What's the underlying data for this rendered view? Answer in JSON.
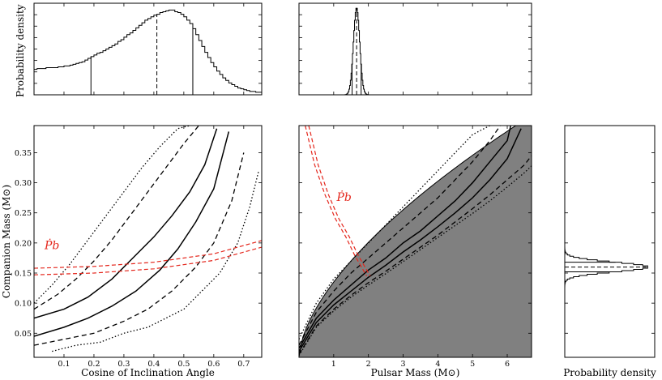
{
  "chart_data": [
    {
      "id": "top-left-hist",
      "type": "histogram",
      "ylabel": "Probability density",
      "xlim": [
        0.0,
        0.76
      ],
      "lines": {
        "solid": [
          0.19,
          0.53
        ],
        "dashed": [
          0.41
        ]
      },
      "bin_width": 0.01,
      "values": [
        0.3,
        0.31,
        0.31,
        0.31,
        0.32,
        0.32,
        0.32,
        0.32,
        0.33,
        0.33,
        0.34,
        0.34,
        0.35,
        0.36,
        0.37,
        0.38,
        0.39,
        0.41,
        0.43,
        0.45,
        0.47,
        0.49,
        0.5,
        0.52,
        0.54,
        0.56,
        0.58,
        0.6,
        0.63,
        0.65,
        0.68,
        0.71,
        0.73,
        0.76,
        0.79,
        0.82,
        0.85,
        0.88,
        0.9,
        0.92,
        0.94,
        0.95,
        0.97,
        0.98,
        0.99,
        1.0,
        1.0,
        0.98,
        0.97,
        0.95,
        0.92,
        0.88,
        0.84,
        0.78,
        0.71,
        0.64,
        0.57,
        0.5,
        0.44,
        0.38,
        0.33,
        0.28,
        0.24,
        0.2,
        0.17,
        0.14,
        0.12,
        0.1,
        0.08,
        0.07,
        0.06,
        0.05,
        0.04,
        0.04,
        0.03,
        0.03
      ]
    },
    {
      "id": "top-middle-hist",
      "type": "histogram",
      "xlim": [
        0.0,
        6.7
      ],
      "center": 1.66,
      "sigma": 0.09,
      "lines": {
        "solid": [
          1.53,
          1.79
        ],
        "dashed": [
          1.66
        ]
      }
    },
    {
      "id": "left-main",
      "type": "line",
      "xlabel": "Cosine of Inclination Angle",
      "ylabel": "Companion Mass (M⊙)",
      "xlim": [
        0.0,
        0.76
      ],
      "ylim": [
        0.01,
        0.395
      ],
      "xticks": [
        "0.1",
        "0.2",
        "0.3",
        "0.4",
        "0.5",
        "0.6",
        "0.7"
      ],
      "yticks": [
        "0.05",
        "0.10",
        "0.15",
        "0.20",
        "0.25",
        "0.30",
        "0.35"
      ],
      "annotation": "Ṗb",
      "contours": [
        {
          "style": "dotted",
          "x": [
            0.0,
            0.06,
            0.12,
            0.18,
            0.24,
            0.3,
            0.36,
            0.42,
            0.48,
            0.52
          ],
          "y": [
            0.1,
            0.13,
            0.165,
            0.205,
            0.245,
            0.285,
            0.325,
            0.36,
            0.39,
            0.395
          ]
        },
        {
          "style": "dashed",
          "x": [
            0.0,
            0.08,
            0.14,
            0.2,
            0.26,
            0.32,
            0.38,
            0.44,
            0.5,
            0.55
          ],
          "y": [
            0.09,
            0.115,
            0.14,
            0.17,
            0.205,
            0.245,
            0.285,
            0.325,
            0.365,
            0.395
          ]
        },
        {
          "style": "solid",
          "x": [
            0.0,
            0.1,
            0.18,
            0.26,
            0.32,
            0.4,
            0.46,
            0.52,
            0.57,
            0.61
          ],
          "y": [
            0.075,
            0.09,
            0.11,
            0.14,
            0.17,
            0.21,
            0.245,
            0.285,
            0.33,
            0.39
          ]
        },
        {
          "style": "solid",
          "x": [
            0.0,
            0.1,
            0.18,
            0.26,
            0.34,
            0.42,
            0.48,
            0.54,
            0.6,
            0.65
          ],
          "y": [
            0.045,
            0.06,
            0.075,
            0.095,
            0.12,
            0.155,
            0.19,
            0.235,
            0.29,
            0.385
          ]
        },
        {
          "style": "dashed",
          "x": [
            0.0,
            0.1,
            0.2,
            0.3,
            0.38,
            0.46,
            0.54,
            0.6,
            0.66,
            0.7
          ],
          "y": [
            0.03,
            0.04,
            0.05,
            0.07,
            0.09,
            0.12,
            0.16,
            0.2,
            0.27,
            0.35
          ]
        },
        {
          "style": "dotted",
          "x": [
            0.06,
            0.14,
            0.22,
            0.3,
            0.38,
            0.44,
            0.5,
            0.56,
            0.62,
            0.68,
            0.72,
            0.75
          ],
          "y": [
            0.02,
            0.03,
            0.035,
            0.05,
            0.06,
            0.075,
            0.09,
            0.12,
            0.15,
            0.2,
            0.26,
            0.32
          ]
        }
      ],
      "red_lines": [
        {
          "x": [
            0.0,
            0.2,
            0.4,
            0.6,
            0.76
          ],
          "y": [
            0.158,
            0.161,
            0.168,
            0.182,
            0.204
          ]
        },
        {
          "x": [
            0.0,
            0.2,
            0.4,
            0.6,
            0.76
          ],
          "y": [
            0.147,
            0.15,
            0.157,
            0.171,
            0.193
          ]
        }
      ]
    },
    {
      "id": "middle-main",
      "type": "line",
      "xlabel": "Pulsar Mass (M⊙)",
      "xlim": [
        0.0,
        6.7
      ],
      "ylim": [
        0.01,
        0.395
      ],
      "xticks": [
        "1",
        "2",
        "3",
        "4",
        "5",
        "6"
      ],
      "annotation": "Ṗb",
      "shaded_region": "excluded",
      "contours": [
        {
          "style": "dotted",
          "x": [
            0.0,
            0.5,
            1.0,
            1.5,
            2.0,
            2.5,
            3.0,
            3.5,
            4.0,
            4.5,
            5.0,
            5.5
          ],
          "y": [
            0.04,
            0.1,
            0.14,
            0.17,
            0.2,
            0.23,
            0.26,
            0.29,
            0.32,
            0.35,
            0.38,
            0.395
          ]
        },
        {
          "style": "dashed",
          "x": [
            0.0,
            0.5,
            1.0,
            1.5,
            2.0,
            2.5,
            3.0,
            3.5,
            4.0,
            4.5,
            5.0,
            5.5,
            5.8
          ],
          "y": [
            0.03,
            0.085,
            0.12,
            0.15,
            0.175,
            0.2,
            0.225,
            0.25,
            0.275,
            0.305,
            0.335,
            0.37,
            0.395
          ]
        },
        {
          "style": "solid",
          "x": [
            0.0,
            0.5,
            1.0,
            1.5,
            2.0,
            2.5,
            3.0,
            3.5,
            4.0,
            4.5,
            5.0,
            5.5,
            6.0,
            6.1
          ],
          "y": [
            0.025,
            0.075,
            0.105,
            0.13,
            0.155,
            0.175,
            0.2,
            0.22,
            0.245,
            0.27,
            0.3,
            0.335,
            0.37,
            0.395
          ]
        },
        {
          "style": "solid",
          "x": [
            0.0,
            0.5,
            1.0,
            1.5,
            2.0,
            2.5,
            3.0,
            3.5,
            4.0,
            4.5,
            5.0,
            5.5,
            6.0,
            6.4
          ],
          "y": [
            0.02,
            0.068,
            0.097,
            0.12,
            0.143,
            0.163,
            0.185,
            0.205,
            0.227,
            0.25,
            0.275,
            0.305,
            0.34,
            0.39
          ]
        },
        {
          "style": "dashed",
          "x": [
            0.0,
            0.5,
            1.0,
            1.5,
            2.0,
            2.5,
            3.0,
            3.5,
            4.0,
            4.5,
            5.0,
            5.5,
            6.0,
            6.5,
            6.7
          ],
          "y": [
            0.015,
            0.062,
            0.09,
            0.113,
            0.134,
            0.153,
            0.173,
            0.193,
            0.213,
            0.235,
            0.257,
            0.28,
            0.305,
            0.33,
            0.345
          ]
        },
        {
          "style": "dotted",
          "x": [
            0.0,
            0.5,
            1.0,
            1.5,
            2.0,
            2.5,
            3.0,
            3.5,
            4.0,
            4.5,
            5.0,
            5.5,
            6.0,
            6.5,
            6.7
          ],
          "y": [
            0.013,
            0.06,
            0.087,
            0.11,
            0.13,
            0.149,
            0.169,
            0.189,
            0.209,
            0.229,
            0.249,
            0.27,
            0.293,
            0.317,
            0.328
          ]
        }
      ],
      "red_lines": [
        {
          "x": [
            0.18,
            0.45,
            0.75,
            1.05,
            1.35,
            1.6,
            1.8,
            1.95
          ],
          "y": [
            0.395,
            0.33,
            0.28,
            0.24,
            0.21,
            0.18,
            0.16,
            0.145
          ]
        },
        {
          "x": [
            0.28,
            0.55,
            0.85,
            1.15,
            1.45,
            1.7,
            1.9,
            2.05
          ],
          "y": [
            0.395,
            0.33,
            0.28,
            0.24,
            0.21,
            0.18,
            0.16,
            0.145
          ]
        }
      ]
    },
    {
      "id": "right-hist",
      "type": "histogram",
      "xlabel": "Probability density",
      "ylim": [
        0.01,
        0.395
      ],
      "center": 0.16,
      "sigma": 0.008,
      "lines": {
        "solid": [
          0.152,
          0.168
        ],
        "dashed": [
          0.16
        ]
      }
    }
  ]
}
